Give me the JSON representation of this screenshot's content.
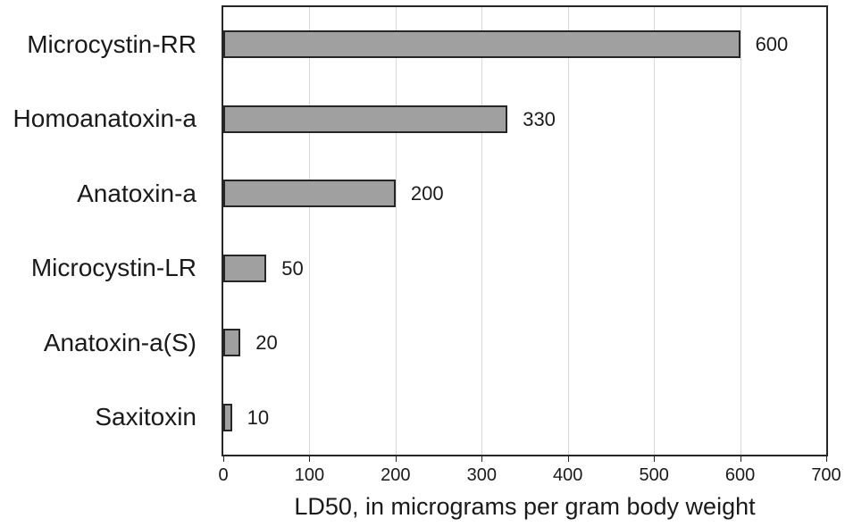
{
  "chart_data": {
    "type": "bar",
    "orientation": "horizontal",
    "categories": [
      "Microcystin-RR",
      "Homoanatoxin-a",
      "Anatoxin-a",
      "Microcystin-LR",
      "Anatoxin-a(S)",
      "Saxitoxin"
    ],
    "values": [
      600,
      330,
      200,
      50,
      20,
      10
    ],
    "data_labels": [
      "600",
      "330",
      "200",
      "50",
      "20",
      "10"
    ],
    "title": "",
    "xlabel": "LD50, in micrograms per gram body weight",
    "ylabel": "",
    "xlim": [
      0,
      700
    ],
    "xticks": [
      0,
      100,
      200,
      300,
      400,
      500,
      600,
      700
    ],
    "grid": "vertical-only",
    "legend": "none",
    "colors": {
      "bar_fill": "#a0a0a0",
      "bar_border": "#262626",
      "plot_border": "#262626",
      "gridline": "#d9d9d9",
      "text": "#1a1a1a",
      "background": "#ffffff"
    }
  }
}
